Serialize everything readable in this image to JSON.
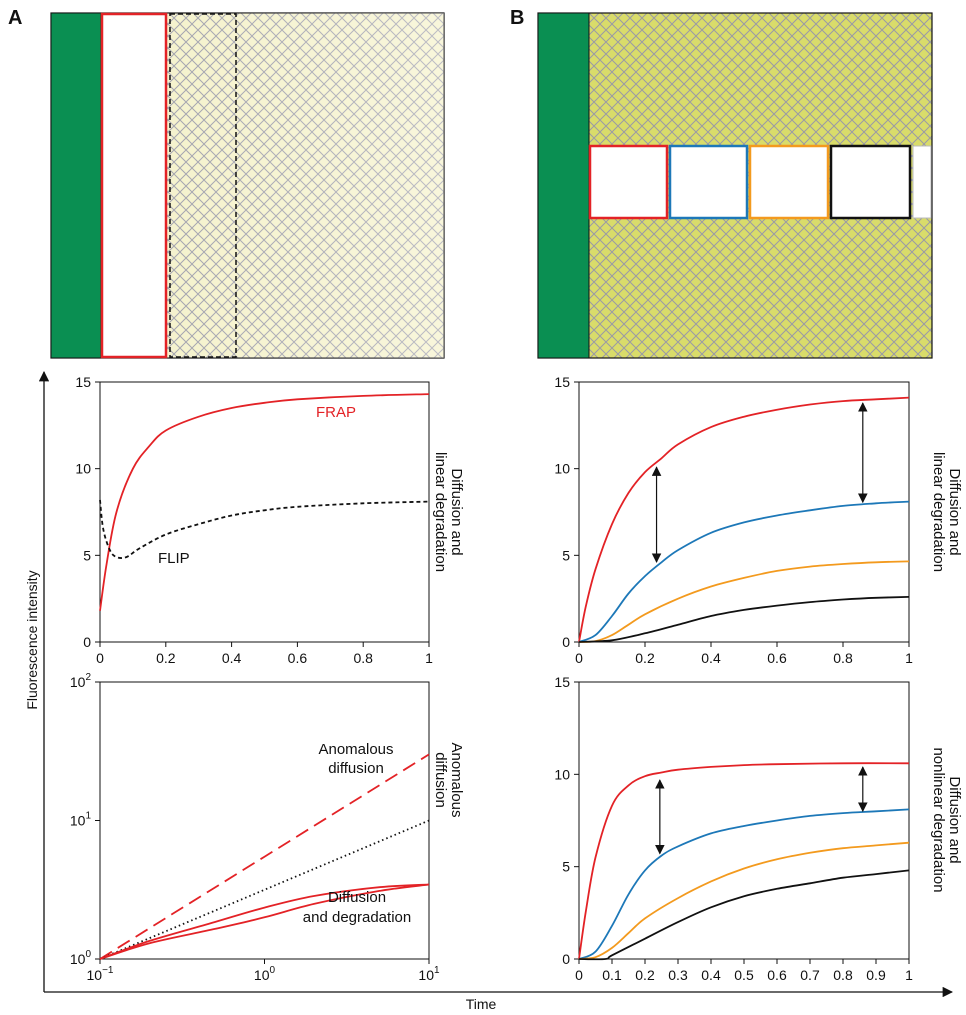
{
  "panels": {
    "a_label": "A",
    "b_label": "B"
  },
  "colors": {
    "green": "#0a8f52",
    "red": "#e32226",
    "blue": "#1d78b8",
    "orange": "#f39a1e",
    "black": "#111111",
    "hatch": "#9a9aa6",
    "field_a": "#f4f1c8",
    "field_b": "#d9dc6a"
  },
  "axes": {
    "xlabel": "Time",
    "ylabel": "Fluorescence intensity"
  },
  "chart_data": [
    {
      "id": "a_linear",
      "type": "line",
      "side_label_line1": "Diffusion and",
      "side_label_line2": "linear degradation",
      "xlim": [
        0,
        1
      ],
      "ylim": [
        0,
        15
      ],
      "x_ticks": [
        "0",
        "0.2",
        "0.4",
        "0.6",
        "0.8",
        "1"
      ],
      "y_ticks": [
        "0",
        "5",
        "10",
        "15"
      ],
      "series": [
        {
          "name": "FRAP",
          "color": "#e32226",
          "dash": "",
          "x": [
            0,
            0.02,
            0.05,
            0.1,
            0.15,
            0.2,
            0.3,
            0.4,
            0.5,
            0.6,
            0.8,
            1.0
          ],
          "y": [
            1.8,
            4.5,
            7.5,
            10.0,
            11.3,
            12.2,
            13.0,
            13.5,
            13.8,
            14.0,
            14.2,
            14.3
          ]
        },
        {
          "name": "FLIP",
          "color": "#111111",
          "dash": "4,3",
          "x": [
            0,
            0.01,
            0.03,
            0.05,
            0.08,
            0.12,
            0.2,
            0.3,
            0.4,
            0.5,
            0.6,
            0.8,
            1.0
          ],
          "y": [
            8.2,
            6.5,
            5.3,
            4.9,
            4.9,
            5.4,
            6.2,
            6.8,
            7.3,
            7.6,
            7.8,
            8.0,
            8.1
          ]
        }
      ]
    },
    {
      "id": "a_anomalous",
      "type": "line",
      "side_label_line1": "Anomalous",
      "side_label_line2": "diffusion",
      "xscale": "log",
      "yscale": "log",
      "xlim": [
        0.1,
        10
      ],
      "ylim": [
        1,
        100
      ],
      "x_ticks": [
        {
          "base": "10",
          "exp": "−1"
        },
        {
          "base": "10",
          "exp": "0"
        },
        {
          "base": "10",
          "exp": "1"
        }
      ],
      "y_ticks": [
        {
          "base": "10",
          "exp": "0"
        },
        {
          "base": "10",
          "exp": "1"
        },
        {
          "base": "10",
          "exp": "2"
        }
      ],
      "annotations": {
        "anomalous_line1": "Anomalous",
        "anomalous_line2": "diffusion",
        "diffdeg_line1": "Diffusion",
        "diffdeg_line2": "and degradation"
      },
      "series": [
        {
          "color": "#e32226",
          "dash": "14,7",
          "x": [
            0.1,
            10
          ],
          "y": [
            1,
            30
          ]
        },
        {
          "color": "#111111",
          "dash": "1.5,3",
          "x": [
            0.1,
            10
          ],
          "y": [
            1,
            10
          ]
        },
        {
          "color": "#e32226",
          "dash": "",
          "x": [
            0.1,
            0.2,
            0.5,
            1,
            2,
            5,
            10
          ],
          "y": [
            1,
            1.35,
            1.85,
            2.35,
            2.85,
            3.3,
            3.45
          ]
        },
        {
          "color": "#e32226",
          "dash": "",
          "x": [
            0.1,
            0.2,
            0.5,
            1,
            2,
            5,
            10
          ],
          "y": [
            1,
            1.3,
            1.65,
            2.0,
            2.5,
            3.1,
            3.45
          ]
        }
      ]
    },
    {
      "id": "b_linear",
      "type": "line",
      "side_label_line1": "Diffusion and",
      "side_label_line2": "linear degradation",
      "xlim": [
        0,
        1
      ],
      "ylim": [
        0,
        15
      ],
      "x_ticks": [
        "0",
        "0.2",
        "0.4",
        "0.6",
        "0.8",
        "1"
      ],
      "y_ticks": [
        "0",
        "5",
        "10",
        "15"
      ],
      "series": [
        {
          "color": "#e32226",
          "dash": "",
          "x": [
            0,
            0.02,
            0.05,
            0.1,
            0.15,
            0.2,
            0.25,
            0.3,
            0.4,
            0.5,
            0.6,
            0.7,
            0.8,
            0.9,
            1.0
          ],
          "y": [
            0,
            2.0,
            4.2,
            6.8,
            8.6,
            9.8,
            10.6,
            11.4,
            12.4,
            13.0,
            13.4,
            13.7,
            13.9,
            14.0,
            14.1
          ]
        },
        {
          "color": "#1d78b8",
          "dash": "",
          "x": [
            0,
            0.05,
            0.1,
            0.15,
            0.2,
            0.25,
            0.3,
            0.4,
            0.5,
            0.6,
            0.7,
            0.8,
            0.9,
            1.0
          ],
          "y": [
            0,
            0.4,
            1.5,
            2.8,
            3.8,
            4.6,
            5.3,
            6.3,
            6.9,
            7.3,
            7.6,
            7.85,
            8.0,
            8.1
          ]
        },
        {
          "color": "#f39a1e",
          "dash": "",
          "x": [
            0,
            0.05,
            0.1,
            0.15,
            0.2,
            0.3,
            0.4,
            0.5,
            0.6,
            0.7,
            0.8,
            0.9,
            1.0
          ],
          "y": [
            0,
            0.05,
            0.4,
            1.0,
            1.6,
            2.5,
            3.2,
            3.7,
            4.1,
            4.35,
            4.5,
            4.6,
            4.65
          ]
        },
        {
          "color": "#111111",
          "dash": "",
          "x": [
            0,
            0.1,
            0.2,
            0.3,
            0.4,
            0.5,
            0.6,
            0.7,
            0.8,
            0.9,
            1.0
          ],
          "y": [
            0,
            0.1,
            0.5,
            1.0,
            1.5,
            1.85,
            2.1,
            2.3,
            2.45,
            2.55,
            2.6
          ]
        }
      ],
      "arrows": [
        {
          "x": 0.235,
          "y_from": 10.2,
          "y_to": 4.5
        },
        {
          "x": 0.86,
          "y_from": 13.9,
          "y_to": 7.95
        }
      ]
    },
    {
      "id": "b_nonlinear",
      "type": "line",
      "side_label_line1": "Diffusion and",
      "side_label_line2": "nonlinear degradation",
      "xlim": [
        0,
        1
      ],
      "ylim": [
        0,
        15
      ],
      "x_ticks": [
        "0",
        "0.1",
        "0.2",
        "0.3",
        "0.4",
        "0.5",
        "0.6",
        "0.7",
        "0.8",
        "0.9",
        "1"
      ],
      "y_ticks": [
        "0",
        "5",
        "10",
        "15"
      ],
      "series": [
        {
          "color": "#e32226",
          "dash": "",
          "x": [
            0,
            0.02,
            0.05,
            0.1,
            0.15,
            0.2,
            0.25,
            0.3,
            0.4,
            0.5,
            0.6,
            0.8,
            1.0
          ],
          "y": [
            0,
            2.5,
            5.5,
            8.3,
            9.4,
            9.9,
            10.1,
            10.25,
            10.4,
            10.5,
            10.55,
            10.6,
            10.6
          ]
        },
        {
          "color": "#1d78b8",
          "dash": "",
          "x": [
            0,
            0.05,
            0.1,
            0.15,
            0.2,
            0.25,
            0.3,
            0.4,
            0.5,
            0.6,
            0.7,
            0.8,
            0.9,
            1.0
          ],
          "y": [
            0,
            0.4,
            1.8,
            3.5,
            4.8,
            5.6,
            6.1,
            6.8,
            7.2,
            7.5,
            7.75,
            7.9,
            8.0,
            8.1
          ]
        },
        {
          "color": "#f39a1e",
          "dash": "",
          "x": [
            0,
            0.05,
            0.1,
            0.15,
            0.2,
            0.3,
            0.4,
            0.5,
            0.6,
            0.7,
            0.8,
            0.9,
            1.0
          ],
          "y": [
            0,
            0.1,
            0.6,
            1.4,
            2.2,
            3.3,
            4.2,
            4.9,
            5.4,
            5.75,
            6.0,
            6.15,
            6.3
          ]
        },
        {
          "color": "#111111",
          "dash": "",
          "x": [
            0,
            0.08,
            0.1,
            0.2,
            0.3,
            0.4,
            0.5,
            0.6,
            0.7,
            0.8,
            0.9,
            1.0
          ],
          "y": [
            0,
            0,
            0.2,
            1.1,
            2.0,
            2.8,
            3.4,
            3.8,
            4.1,
            4.4,
            4.6,
            4.8
          ]
        }
      ],
      "arrows": [
        {
          "x": 0.245,
          "y_from": 9.8,
          "y_to": 5.6
        },
        {
          "x": 0.86,
          "y_from": 10.5,
          "y_to": 7.9
        }
      ]
    }
  ]
}
